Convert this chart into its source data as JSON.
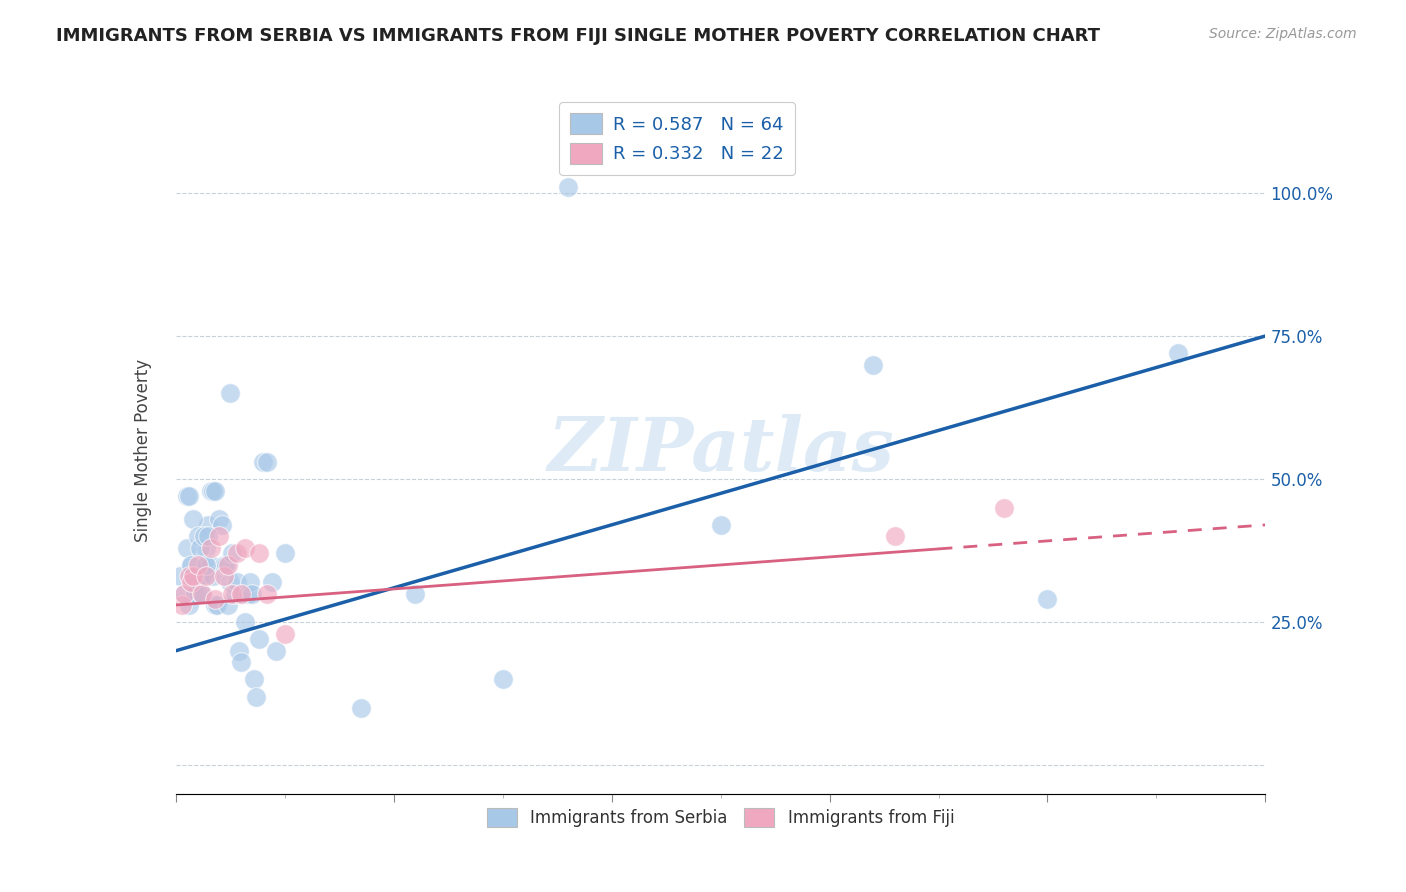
{
  "title": "IMMIGRANTS FROM SERBIA VS IMMIGRANTS FROM FIJI SINGLE MOTHER POVERTY CORRELATION CHART",
  "source": "Source: ZipAtlas.com",
  "ylabel": "Single Mother Poverty",
  "xlim": [
    0.0,
    5.0
  ],
  "ylim": [
    -5.0,
    115.0
  ],
  "yticks": [
    0,
    25,
    50,
    75,
    100
  ],
  "ytick_labels": [
    "",
    "25.0%",
    "50.0%",
    "75.0%",
    "100.0%"
  ],
  "serbia_R": 0.587,
  "serbia_N": 64,
  "fiji_R": 0.332,
  "fiji_N": 22,
  "serbia_color": "#a8c8e8",
  "fiji_color": "#f0a8c0",
  "serbia_line_color": "#1a5fa8",
  "fiji_line_color": "#d86080",
  "watermark": "ZIPatlas",
  "serbia_x": [
    0.02,
    0.04,
    0.05,
    0.06,
    0.07,
    0.08,
    0.09,
    0.1,
    0.11,
    0.12,
    0.13,
    0.14,
    0.15,
    0.16,
    0.17,
    0.18,
    0.19,
    0.2,
    0.21,
    0.22,
    0.23,
    0.24,
    0.25,
    0.26,
    0.27,
    0.28,
    0.29,
    0.3,
    0.31,
    0.32,
    0.33,
    0.34,
    0.35,
    0.36,
    0.37,
    0.38,
    0.4,
    0.42,
    0.44,
    0.46,
    0.05,
    0.06,
    0.07,
    0.08,
    0.09,
    0.1,
    0.11,
    0.12,
    0.13,
    0.14,
    0.15,
    0.16,
    0.17,
    0.18,
    0.25,
    0.5,
    0.85,
    1.1,
    1.5,
    1.8,
    2.5,
    3.2,
    4.0,
    4.6
  ],
  "serbia_y": [
    33,
    30,
    47,
    47,
    35,
    32,
    30,
    30,
    33,
    33,
    35,
    38,
    42,
    35,
    33,
    28,
    28,
    43,
    42,
    35,
    35,
    28,
    32,
    37,
    30,
    32,
    20,
    18,
    30,
    25,
    30,
    32,
    30,
    15,
    12,
    22,
    53,
    53,
    32,
    20,
    38,
    28,
    35,
    43,
    30,
    40,
    38,
    30,
    40,
    35,
    40,
    48,
    48,
    48,
    65,
    37,
    10,
    30,
    15,
    101,
    42,
    70,
    29,
    72
  ],
  "fiji_x": [
    0.03,
    0.04,
    0.06,
    0.07,
    0.08,
    0.1,
    0.12,
    0.14,
    0.16,
    0.18,
    0.2,
    0.22,
    0.24,
    0.26,
    0.28,
    0.3,
    0.32,
    0.38,
    0.42,
    0.5,
    3.3,
    3.8
  ],
  "fiji_y": [
    28,
    30,
    33,
    32,
    33,
    35,
    30,
    33,
    38,
    29,
    40,
    33,
    35,
    30,
    37,
    30,
    38,
    37,
    30,
    23,
    40,
    45
  ],
  "legend_serbia_label": "R = 0.587   N = 64",
  "legend_fiji_label": "R = 0.332   N = 22",
  "bottom_legend_serbia": "Immigrants from Serbia",
  "bottom_legend_fiji": "Immigrants from Fiji",
  "serbia_line_x0": 0.0,
  "serbia_line_y0": 20.0,
  "serbia_line_x1": 5.0,
  "serbia_line_y1": 75.0,
  "fiji_line_x0": 0.0,
  "fiji_line_y0": 28.0,
  "fiji_line_x1": 5.0,
  "fiji_line_y1": 42.0
}
